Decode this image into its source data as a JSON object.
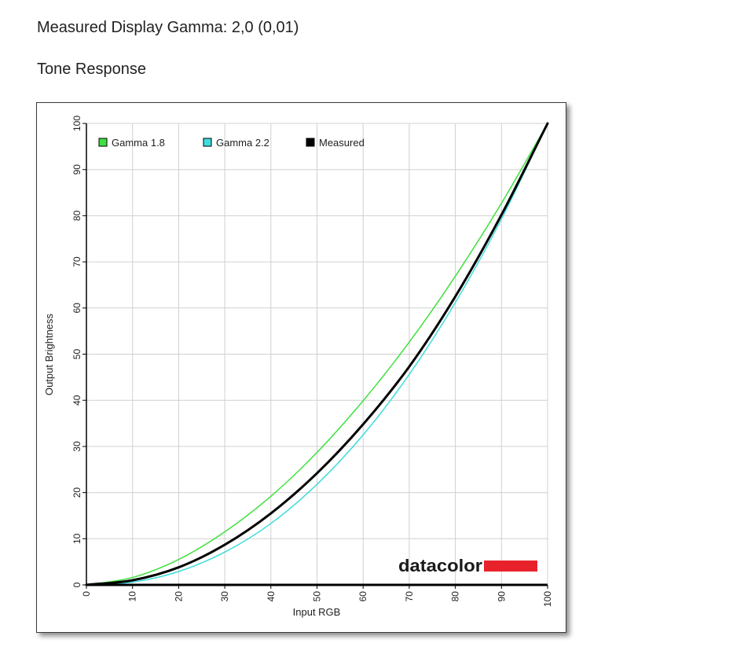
{
  "header": {
    "measured_gamma": "Measured Display Gamma: 2,0 (0,01)",
    "section_title": "Tone Response"
  },
  "chart_data": {
    "type": "line",
    "title": "",
    "xlabel": "Input RGB",
    "ylabel": "Output Brightness",
    "xlim": [
      0,
      100
    ],
    "ylim": [
      0,
      100
    ],
    "xticks": [
      "0",
      "10",
      "20",
      "30",
      "40",
      "50",
      "60",
      "70",
      "80",
      "90",
      "100"
    ],
    "yticks": [
      "0",
      "10",
      "20",
      "30",
      "40",
      "50",
      "60",
      "70",
      "80",
      "90",
      "100"
    ],
    "grid": true,
    "legend_position": "top-left",
    "x": [
      0,
      10,
      20,
      30,
      40,
      50,
      60,
      70,
      80,
      90,
      100
    ],
    "series": [
      {
        "name": "Gamma 1.8",
        "color": "#3ee03e",
        "values": [
          0,
          1.6,
          5.5,
          11.5,
          19.2,
          28.7,
          39.9,
          52.6,
          66.9,
          82.7,
          100
        ]
      },
      {
        "name": "Gamma 2.2",
        "color": "#3fdcdc",
        "values": [
          0,
          0.6,
          2.9,
          7.1,
          13.3,
          21.8,
          32.5,
          45.6,
          61.2,
          79.3,
          100
        ]
      },
      {
        "name": "Measured",
        "color": "#000000",
        "values": [
          0,
          1.0,
          3.8,
          8.7,
          15.5,
          24.2,
          34.8,
          47.3,
          62.5,
          80.2,
          100
        ]
      }
    ],
    "watermark": "datacolor",
    "watermark_bar_color": "#e8222b"
  }
}
